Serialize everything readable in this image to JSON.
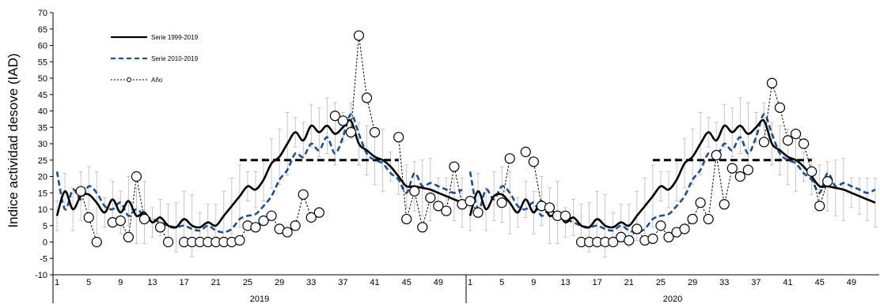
{
  "chart_data": {
    "type": "line",
    "ylabel": "Indice actividad desove (IAD)",
    "ylim": [
      -10,
      70
    ],
    "yticks": [
      -10,
      -5,
      0,
      5,
      10,
      15,
      20,
      25,
      30,
      35,
      40,
      45,
      50,
      55,
      60,
      65,
      70
    ],
    "xtick_labels": [
      "1",
      "5",
      "9",
      "13",
      "17",
      "21",
      "25",
      "29",
      "33",
      "37",
      "41",
      "45",
      "49"
    ],
    "year_labels": [
      "2019",
      "2020"
    ],
    "threshold": 25,
    "threshold_weeks": [
      24,
      44
    ],
    "grid": false,
    "legend_position": "top-left",
    "series": [
      {
        "name": "Serie  1999-2019",
        "style": "solid-black",
        "values": [
          8,
          15.5,
          10,
          14,
          14.5,
          12,
          9,
          13,
          9,
          12.5,
          8,
          9,
          6,
          7.5,
          5,
          4.5,
          7,
          5,
          4.5,
          6,
          5,
          8,
          11,
          14,
          17,
          16,
          19,
          24,
          26,
          30,
          33.5,
          31,
          35.5,
          33.5,
          35.5,
          33,
          35,
          37,
          30,
          28,
          26,
          25,
          23,
          20,
          17,
          17,
          16.5,
          16,
          15,
          14,
          13,
          12
        ]
      },
      {
        "name": "Serie 2010-2019",
        "style": "dashed-blue",
        "values": [
          21.5,
          10,
          16,
          13,
          17,
          15,
          11,
          10,
          12,
          8,
          10,
          8,
          7,
          6,
          5,
          4.5,
          5,
          4,
          3.5,
          5,
          3.5,
          3,
          4,
          7,
          8,
          8.5,
          11,
          14,
          19,
          22,
          27,
          26,
          30,
          28,
          32,
          27,
          32,
          39,
          33,
          27,
          25,
          24,
          21,
          19,
          15,
          21,
          17,
          18,
          17,
          16,
          15,
          16
        ]
      },
      {
        "name": "Año",
        "style": "dotted-circle",
        "segments": [
          {
            "year": "2019",
            "values": [
              null,
              null,
              null,
              15.5,
              7.5,
              0,
              null,
              6,
              6.5,
              1.5,
              20,
              7,
              null,
              4.5,
              0,
              null,
              0,
              0,
              0,
              0,
              0,
              0,
              0,
              0.5,
              5,
              4.5,
              6.5,
              8,
              4,
              3,
              5,
              14.5,
              7.5,
              9,
              null,
              38.5,
              37,
              33.5,
              63,
              44,
              33.5,
              null,
              null,
              32,
              7,
              15.5,
              4.5,
              13.5,
              11,
              9.5,
              23,
              11.5
            ]
          },
          {
            "year": "2020",
            "values": [
              12.5,
              9,
              null,
              null,
              12,
              25.5,
              null,
              27.5,
              24.5,
              11,
              10.5,
              8,
              8,
              null,
              0,
              0,
              0,
              0,
              0,
              1.5,
              0.5,
              4,
              0.5,
              1,
              5,
              1.5,
              3,
              4,
              7,
              12,
              7,
              26.5,
              11.5,
              22.5,
              20,
              22,
              null,
              30.5,
              48.5,
              41,
              31,
              33,
              30,
              21.5,
              11,
              18.5,
              null,
              null,
              null,
              null,
              null,
              null
            ]
          }
        ]
      }
    ]
  }
}
